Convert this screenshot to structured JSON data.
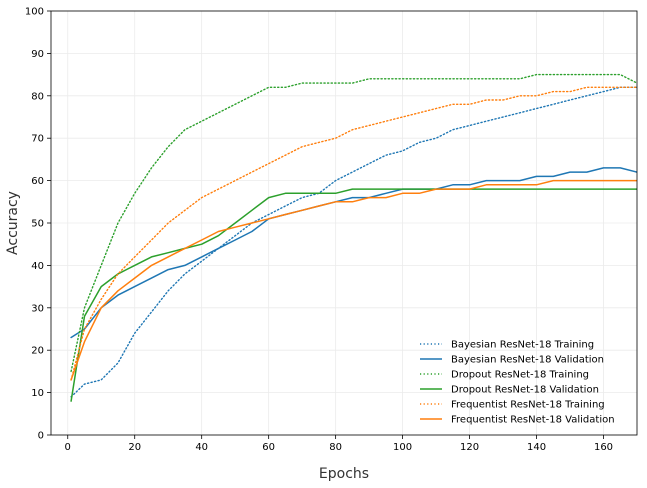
{
  "chart_data": {
    "type": "line",
    "xlabel": "Epochs",
    "ylabel": "Accuracy",
    "xlim": [
      -5,
      170
    ],
    "ylim": [
      0,
      100
    ],
    "x_ticks": [
      0,
      20,
      40,
      60,
      80,
      100,
      120,
      140,
      160
    ],
    "y_ticks": [
      0,
      10,
      20,
      30,
      40,
      50,
      60,
      70,
      80,
      90,
      100
    ],
    "grid": true,
    "legend_position": "bottom-right",
    "x": [
      1,
      5,
      10,
      15,
      20,
      25,
      30,
      35,
      40,
      45,
      50,
      55,
      60,
      65,
      70,
      75,
      80,
      85,
      90,
      95,
      100,
      105,
      110,
      115,
      120,
      125,
      130,
      135,
      140,
      145,
      150,
      155,
      160,
      165,
      170
    ],
    "series": [
      {
        "name": "Bayesian ResNet-18 Training",
        "color": "#1f77b4",
        "style": "dotted",
        "values": [
          9,
          12,
          13,
          17,
          24,
          29,
          34,
          38,
          41,
          44,
          47,
          50,
          52,
          54,
          56,
          57,
          60,
          62,
          64,
          66,
          67,
          69,
          70,
          72,
          73,
          74,
          75,
          76,
          77,
          78,
          79,
          80,
          81,
          82,
          82
        ]
      },
      {
        "name": "Bayesian ResNet-18 Validation",
        "color": "#1f77b4",
        "style": "solid",
        "values": [
          23,
          25,
          30,
          33,
          35,
          37,
          39,
          40,
          42,
          44,
          46,
          48,
          51,
          52,
          53,
          54,
          55,
          56,
          56,
          57,
          58,
          58,
          58,
          59,
          59,
          60,
          60,
          60,
          61,
          61,
          62,
          62,
          63,
          63,
          62
        ]
      },
      {
        "name": "Dropout ResNet-18 Training",
        "color": "#2ca02c",
        "style": "dotted",
        "values": [
          15,
          30,
          40,
          50,
          57,
          63,
          68,
          72,
          74,
          76,
          78,
          80,
          82,
          82,
          83,
          83,
          83,
          83,
          84,
          84,
          84,
          84,
          84,
          84,
          84,
          84,
          84,
          84,
          85,
          85,
          85,
          85,
          85,
          85,
          83
        ]
      },
      {
        "name": "Dropout ResNet-18 Validation",
        "color": "#2ca02c",
        "style": "solid",
        "values": [
          8,
          28,
          35,
          38,
          40,
          42,
          43,
          44,
          45,
          47,
          50,
          53,
          56,
          57,
          57,
          57,
          57,
          58,
          58,
          58,
          58,
          58,
          58,
          58,
          58,
          58,
          58,
          58,
          58,
          58,
          58,
          58,
          58,
          58,
          58
        ]
      },
      {
        "name": "Frequentist ResNet-18 Training",
        "color": "#ff7f0e",
        "style": "dotted",
        "values": [
          13,
          25,
          32,
          38,
          42,
          46,
          50,
          53,
          56,
          58,
          60,
          62,
          64,
          66,
          68,
          69,
          70,
          72,
          73,
          74,
          75,
          76,
          77,
          78,
          78,
          79,
          79,
          80,
          80,
          81,
          81,
          82,
          82,
          82,
          82
        ]
      },
      {
        "name": "Frequentist ResNet-18 Validation",
        "color": "#ff7f0e",
        "style": "solid",
        "values": [
          13,
          22,
          30,
          34,
          37,
          40,
          42,
          44,
          46,
          48,
          49,
          50,
          51,
          52,
          53,
          54,
          55,
          55,
          56,
          56,
          57,
          57,
          58,
          58,
          58,
          59,
          59,
          59,
          59,
          60,
          60,
          60,
          60,
          60,
          60
        ]
      }
    ]
  }
}
